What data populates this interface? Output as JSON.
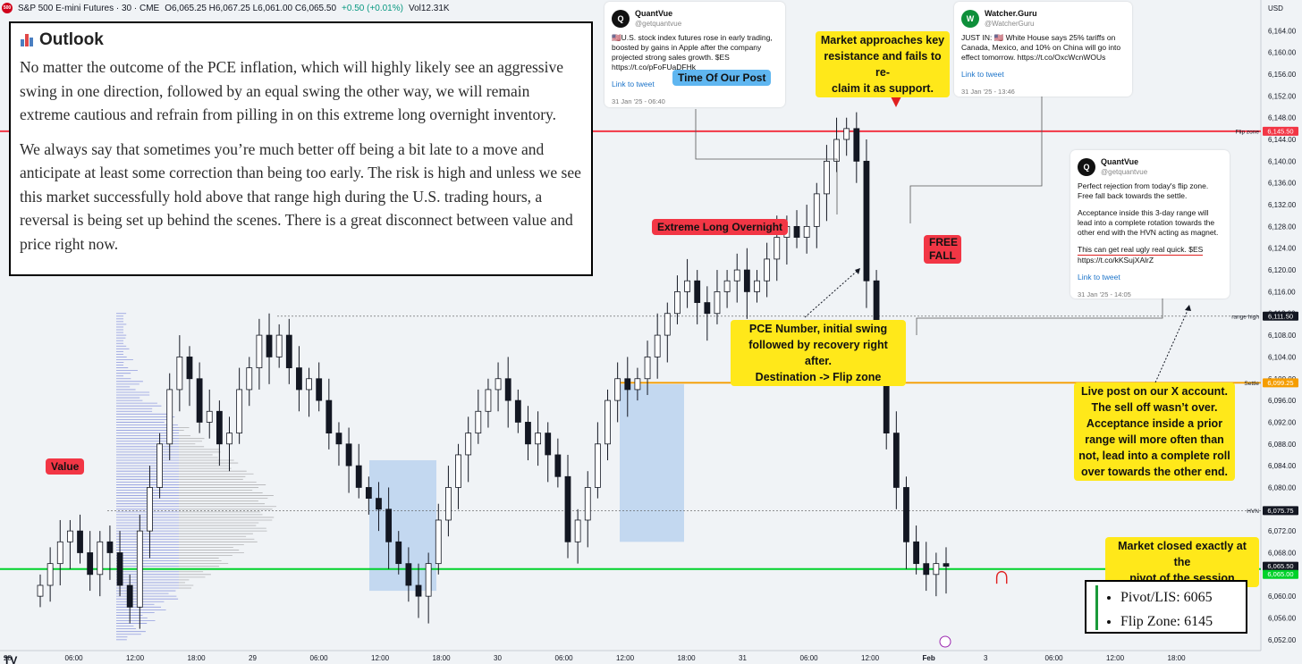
{
  "header": {
    "logo": "500",
    "symbol": "S&P 500 E-mini Futures · 30 · CME",
    "ohlc": "O6,065.25 H6,067.25 L6,061.00 C6,065.50",
    "change": "+0.50 (+0.01%)",
    "volume": "Vol12.31K",
    "currency": "USD"
  },
  "outlook": {
    "title": "Outlook",
    "paragraphs": [
      "No matter the outcome of the PCE inflation, which will highly likely see an aggressive swing in one direction, followed by an equal swing the other way, we will remain extreme cautious and refrain from pilling in on this extreme long overnight inventory.",
      "We always say that sometimes you’re much better off being a bit late to a move and anticipate at least some correction than being too early. The risk is high and unless we see this market successfully hold above that range high during the U.S. trading hours, a reversal is being set up behind the scenes. There is a great disconnect between value and price right now."
    ]
  },
  "tweets": [
    {
      "name": "QuantVue",
      "handle": "@getquantvue",
      "avatar": "Q",
      "text": "🇺🇸U.S. stock index futures rose in early trading, boosted by gains in Apple after the company projected strong sales growth. $ES https://t.co/pFoFUaDFHk",
      "link": "Link to tweet",
      "date": "31 Jan '25 - 06:40"
    },
    {
      "name": "Watcher.Guru",
      "handle": "@WatcherGuru",
      "avatar": "W",
      "text": "JUST IN: 🇺🇸 White House says 25% tariffs on Canada, Mexico, and 10% on China will go into effect tomorrow. https://t.co/OxcWcnWOUs",
      "link": "Link to tweet",
      "date": "31 Jan '25 - 13:46"
    },
    {
      "name": "QuantVue",
      "handle": "@getquantvue",
      "avatar": "Q",
      "text1": "Perfect rejection from today's flip zone. Free fall back towards the settle.",
      "text2": "Acceptance inside this 3-day range will lead into a complete rotation towards the other end with the HVN acting as magnet.",
      "text3": "This can get real ugly real quick. $ES",
      "text4": "https://t.co/kKSujXAlrZ",
      "link": "Link to tweet",
      "date": "31 Jan '25 - 14:05"
    }
  ],
  "annotations": {
    "time_of_post": "Time Of Our Post",
    "key_resistance": [
      "Market approaches key",
      "resistance and fails to re-",
      "claim it as support."
    ],
    "extreme_long": "Extreme Long Overnight",
    "free_fall": [
      "FREE",
      "FALL"
    ],
    "pce": [
      "PCE Number, initial swing",
      "followed by recovery right after.",
      "Destination -> Flip zone"
    ],
    "live_post": [
      "Live post on our X account.",
      "The sell off wasn’t over.",
      "Acceptance inside a prior",
      "range will more often than",
      "not, lead into a complete roll",
      "over towards the other end."
    ],
    "value": "Value",
    "closed": [
      "Market closed exactly at the",
      "pivot of the session"
    ]
  },
  "pivot_box": {
    "items": [
      "Pivot/LIS: 6065",
      "Flip Zone: 6145"
    ]
  },
  "levels": [
    {
      "name": "Flip zone",
      "price": "6,145.50",
      "color": "#f23645"
    },
    {
      "name": "range high",
      "price": "6,111.50",
      "color": "#131722"
    },
    {
      "name": "Settle",
      "price": "6,099.25",
      "color": "#f59d00"
    },
    {
      "name": "HVN",
      "price": "6,075.75",
      "color": "#131722"
    },
    {
      "name": "",
      "price": "6,065.50",
      "color": "#131722"
    },
    {
      "name": "",
      "price": "6,065.00",
      "color": "#00d22a"
    }
  ],
  "price_axis": [
    "6,164.00",
    "6,160.00",
    "6,156.00",
    "6,152.00",
    "6,148.00",
    "6,144.00",
    "6,140.00",
    "6,136.00",
    "6,132.00",
    "6,128.00",
    "6,124.00",
    "6,120.00",
    "6,116.00",
    "6,112.00",
    "6,108.00",
    "6,104.00",
    "6,100.00",
    "6,096.00",
    "6,092.00",
    "6,088.00",
    "6,084.00",
    "6,080.00",
    "6,076.00",
    "6,072.00",
    "6,068.00",
    "6,064.00",
    "6,060.00",
    "6,056.00",
    "6,052.00"
  ],
  "time_axis": [
    "28",
    "06:00",
    "12:00",
    "18:00",
    "29",
    "06:00",
    "12:00",
    "18:00",
    "30",
    "06:00",
    "12:00",
    "18:00",
    "31",
    "06:00",
    "12:00",
    "Feb",
    "3",
    "06:00",
    "12:00",
    "18:00"
  ],
  "colors": {
    "up": "#ffffff",
    "down": "#131722",
    "flip": "#f23645",
    "settle": "#f59d00",
    "pivot": "#00d22a",
    "profile_blue": "#6b78d6",
    "profile_gray": "#8a8a8a",
    "box_blue": "#b4cfee"
  },
  "chart_data": {
    "type": "candlestick",
    "symbol": "S&P 500 E-mini Futures",
    "interval": "30",
    "ylim": [
      6050,
      6168
    ],
    "levels": {
      "flip_zone": 6145.5,
      "range_high": 6111.5,
      "settle": 6099.25,
      "hvn": 6075.75,
      "pivot": 6065.0
    },
    "close": [
      6062,
      6066,
      6070,
      6072,
      6068,
      6064,
      6070,
      6068,
      6062,
      6058,
      6072,
      6080,
      6088,
      6098,
      6104,
      6100,
      6092,
      6094,
      6088,
      6090,
      6098,
      6102,
      6108,
      6104,
      6108,
      6102,
      6098,
      6100,
      6096,
      6090,
      6088,
      6084,
      6080,
      6078,
      6076,
      6070,
      6066,
      6062,
      6060,
      6066,
      6074,
      6080,
      6086,
      6090,
      6094,
      6098,
      6100,
      6096,
      6092,
      6088,
      6090,
      6086,
      6082,
      6070,
      6074,
      6080,
      6088,
      6096,
      6100,
      6098,
      6100,
      6104,
      6108,
      6112,
      6116,
      6118,
      6114,
      6112,
      6116,
      6118,
      6120,
      6116,
      6118,
      6122,
      6126,
      6128,
      6126,
      6128,
      6134,
      6140,
      6144,
      6146,
      6140,
      6118,
      6104,
      6090,
      6080,
      6070,
      6066,
      6064,
      6066,
      6065.5
    ]
  }
}
